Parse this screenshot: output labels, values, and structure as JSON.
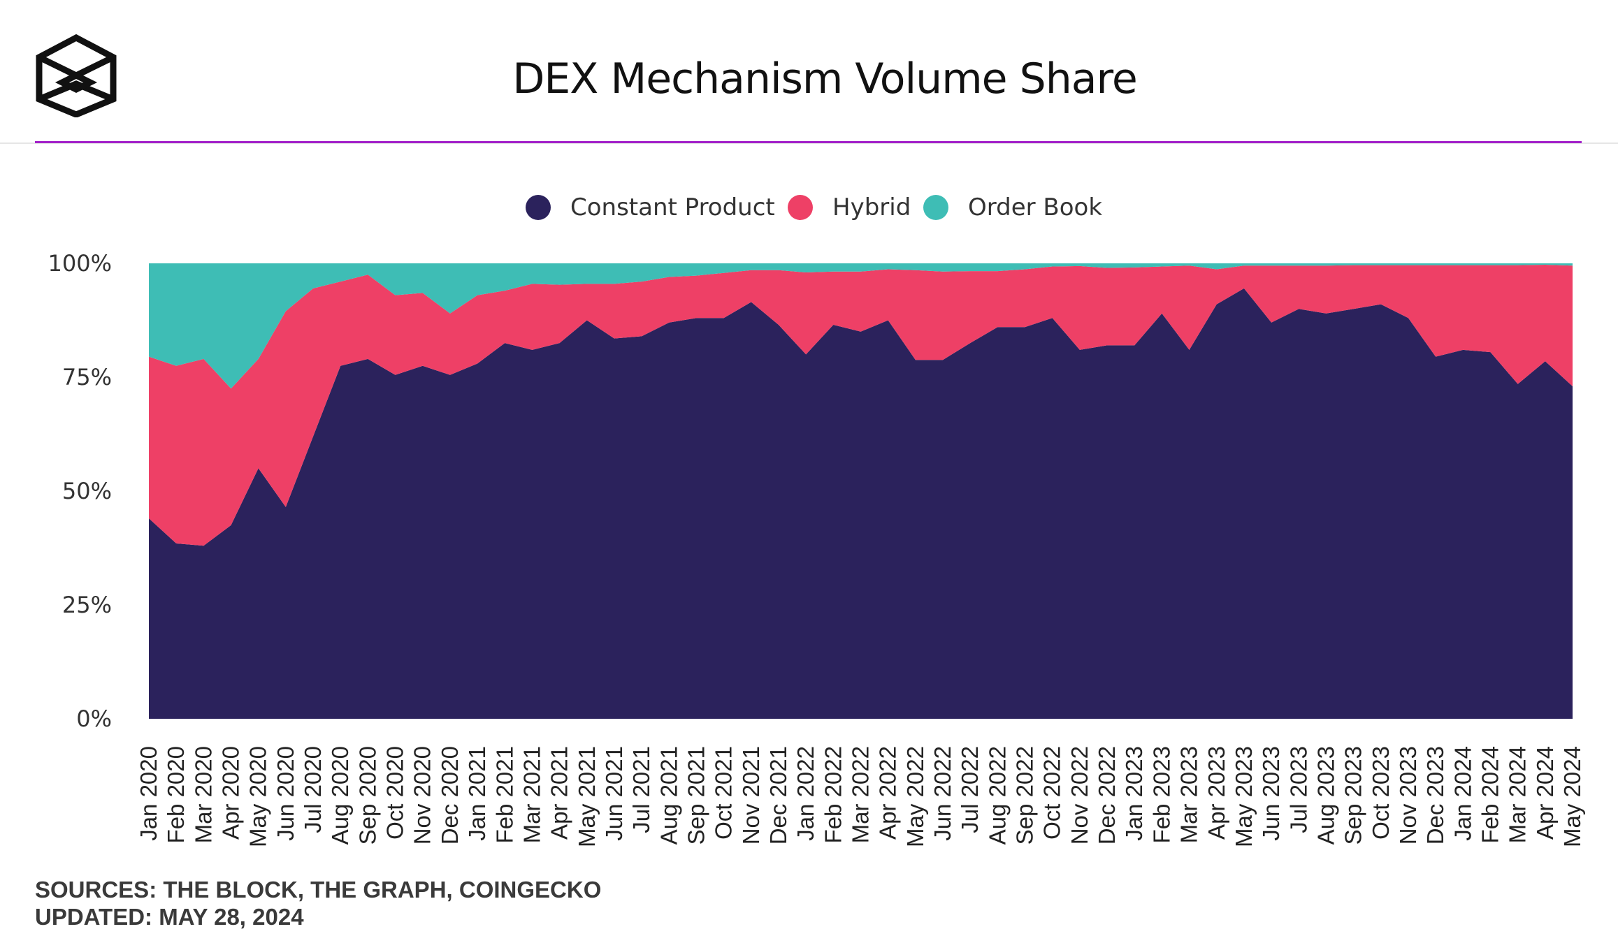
{
  "header": {
    "title": "DEX Mechanism Volume Share",
    "logo_icon": "the-block-cube-logo-icon",
    "accent_color": "#a221c9"
  },
  "footer": {
    "sources": "SOURCES: THE BLOCK, THE GRAPH, COINGECKO",
    "updated": "UPDATED: MAY 28, 2024"
  },
  "chart_data": {
    "type": "area",
    "stacked": true,
    "percent": true,
    "title": "DEX Mechanism Volume Share",
    "xlabel": "",
    "ylabel": "",
    "ylim": [
      0,
      100
    ],
    "yticks": [
      "0%",
      "25%",
      "50%",
      "75%",
      "100%"
    ],
    "grid": false,
    "legend_position": "top-center",
    "categories": [
      "Jan 2020",
      "Feb 2020",
      "Mar 2020",
      "Apr 2020",
      "May 2020",
      "Jun 2020",
      "Jul 2020",
      "Aug 2020",
      "Sep 2020",
      "Oct 2020",
      "Nov 2020",
      "Dec 2020",
      "Jan 2021",
      "Feb 2021",
      "Mar 2021",
      "Apr 2021",
      "May 2021",
      "Jun 2021",
      "Jul 2021",
      "Aug 2021",
      "Sep 2021",
      "Oct 2021",
      "Nov 2021",
      "Dec 2021",
      "Jan 2022",
      "Feb 2022",
      "Mar 2022",
      "Apr 2022",
      "May 2022",
      "Jun 2022",
      "Jul 2022",
      "Aug 2022",
      "Sep 2022",
      "Oct 2022",
      "Nov 2022",
      "Dec 2022",
      "Jan 2023",
      "Feb 2023",
      "Mar 2023",
      "Apr 2023",
      "May 2023",
      "Jun 2023",
      "Jul 2023",
      "Aug 2023",
      "Sep 2023",
      "Oct 2023",
      "Nov 2023",
      "Dec 2023",
      "Jan 2024",
      "Feb 2024",
      "Mar 2024",
      "Apr 2024",
      "May 2024"
    ],
    "series": [
      {
        "name": "Constant Product",
        "color": "#2b225c",
        "values": [
          44,
          38.5,
          38,
          42.5,
          55,
          46.5,
          62,
          77.5,
          79,
          75.5,
          77.5,
          75.5,
          78,
          82.5,
          81,
          82.5,
          87.5,
          83.5,
          84,
          87,
          88,
          88,
          91.5,
          86.5,
          80,
          86.5,
          85,
          87.5,
          78.8,
          78.8,
          82.5,
          86,
          86,
          88,
          81,
          82,
          82,
          89,
          81,
          91,
          94.5,
          87,
          90,
          89,
          90,
          91,
          88,
          79.5,
          81,
          80.5,
          73.5,
          78.5,
          73
        ]
      },
      {
        "name": "Hybrid",
        "color": "#ee4066",
        "values": [
          35.5,
          39,
          41,
          30,
          24,
          43,
          32.5,
          18.5,
          18.5,
          17.5,
          16,
          13.5,
          15,
          11.5,
          14.5,
          12.8,
          8,
          12,
          12,
          10,
          9.3,
          9.9,
          7,
          12,
          18,
          11.7,
          13.2,
          11.2,
          19.7,
          19.4,
          15.8,
          12.3,
          12.7,
          11.3,
          18.4,
          17,
          17.1,
          10.3,
          18.5,
          7.7,
          5,
          12.5,
          9.5,
          10.5,
          9.6,
          8.6,
          11.6,
          20.1,
          18.6,
          19.1,
          26.1,
          21.2,
          26.5
        ]
      },
      {
        "name": "Order Book",
        "color": "#3ebdb5",
        "values": [
          20.5,
          22.5,
          21,
          27.5,
          21,
          10.5,
          5.5,
          4,
          2.5,
          7,
          6.5,
          11,
          7,
          6,
          4.5,
          4.7,
          4.5,
          4.5,
          4,
          3,
          2.7,
          2.1,
          1.5,
          1.5,
          2,
          1.8,
          1.8,
          1.3,
          1.5,
          1.8,
          1.7,
          1.7,
          1.3,
          0.7,
          0.6,
          1,
          0.9,
          0.7,
          0.5,
          1.3,
          0.5,
          0.5,
          0.5,
          0.5,
          0.4,
          0.4,
          0.4,
          0.4,
          0.4,
          0.4,
          0.4,
          0.3,
          0.5
        ]
      }
    ]
  }
}
